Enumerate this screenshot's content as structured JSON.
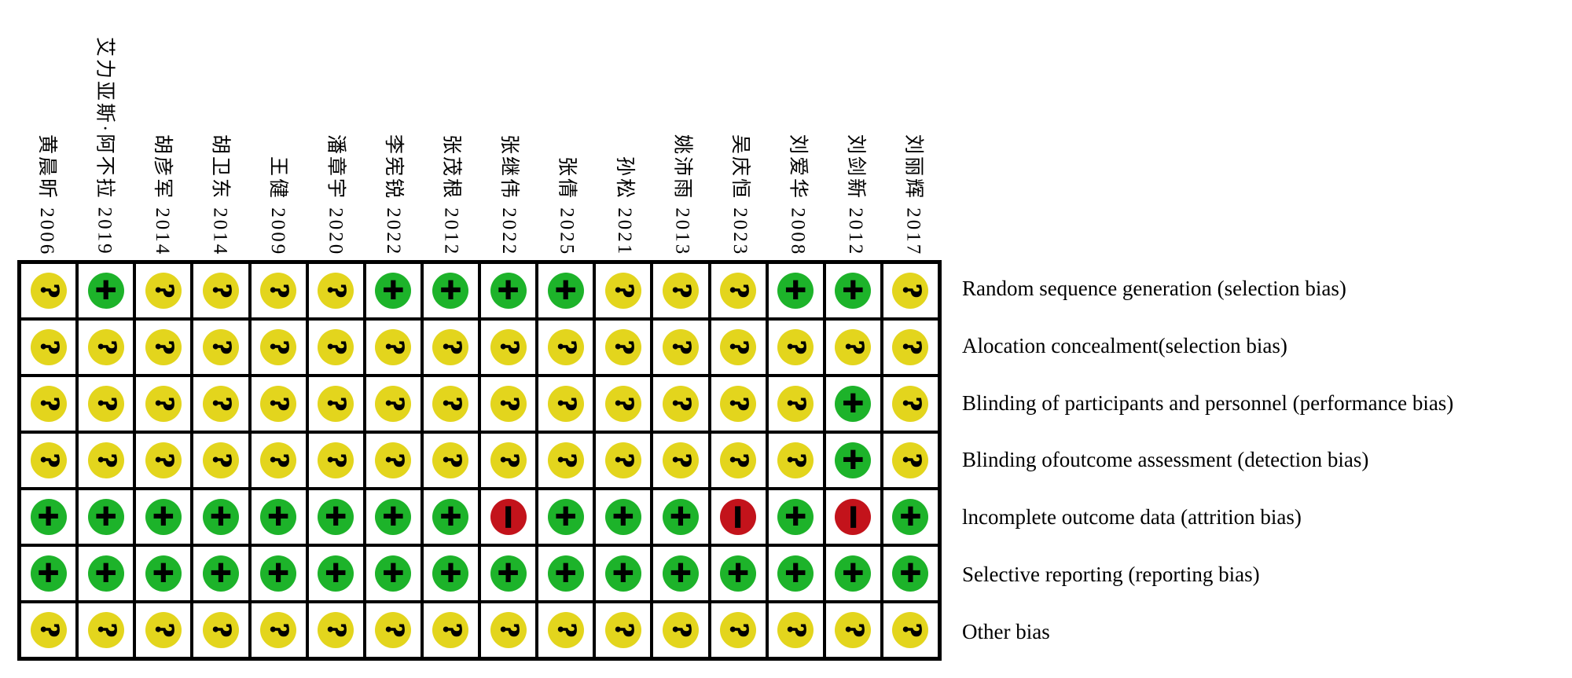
{
  "chart_data": {
    "type": "heatmap",
    "columns": [
      "黄晨昕 2006",
      "艾力亚斯·阿不拉 2019",
      "胡彦军 2014",
      "胡卫东 2014",
      "王健 2009",
      "潘章宇 2020",
      "李宪锐 2022",
      "张茂根 2012",
      "张继伟 2022",
      "张倩 2025",
      "孙松 2021",
      "姚沛雨 2013",
      "吴庆恒 2023",
      "刘爱华 2008",
      "刘剑新 2012",
      "刘丽辉 2017"
    ],
    "rows": [
      "Random sequence generation (selection bias)",
      "Alocation concealment(selection bias)",
      "Blinding of participants and personnel (performance bias)",
      "Blinding ofoutcome assessment (detection bias)",
      "lncomplete outcome data (attrition bias)",
      "Selective reporting (reporting bias)",
      "Other bias"
    ],
    "values": [
      [
        "?",
        "+",
        "?",
        "?",
        "?",
        "?",
        "+",
        "+",
        "+",
        "+",
        "?",
        "?",
        "?",
        "+",
        "+",
        "?"
      ],
      [
        "?",
        "?",
        "?",
        "?",
        "?",
        "?",
        "?",
        "?",
        "?",
        "?",
        "?",
        "?",
        "?",
        "?",
        "?",
        "?"
      ],
      [
        "?",
        "?",
        "?",
        "?",
        "?",
        "?",
        "?",
        "?",
        "?",
        "?",
        "?",
        "?",
        "?",
        "?",
        "+",
        "?"
      ],
      [
        "?",
        "?",
        "?",
        "?",
        "?",
        "?",
        "?",
        "?",
        "?",
        "?",
        "?",
        "?",
        "?",
        "?",
        "+",
        "?"
      ],
      [
        "+",
        "+",
        "+",
        "+",
        "+",
        "+",
        "+",
        "+",
        "-",
        "+",
        "+",
        "+",
        "-",
        "+",
        "-",
        "+"
      ],
      [
        "+",
        "+",
        "+",
        "+",
        "+",
        "+",
        "+",
        "+",
        "+",
        "+",
        "+",
        "+",
        "+",
        "+",
        "+",
        "+"
      ],
      [
        "?",
        "?",
        "?",
        "?",
        "?",
        "?",
        "?",
        "?",
        "?",
        "?",
        "?",
        "?",
        "?",
        "?",
        "?",
        "?"
      ]
    ],
    "encoding": {
      "+": "low risk (green circle, plus sign)",
      "?": "unclear risk (yellow circle, question mark)",
      "-": "high risk (red circle, minus sign)"
    },
    "layout": "grid of 16 study columns x 7 bias-domain rows; study names rotated 90° clockwise above columns; domain labels horizontal at right"
  },
  "risk_names": {
    "+": "low",
    "?": "unclear",
    "-": "high"
  },
  "display_symbols": {
    "+": "+",
    "?": "?",
    "-": "−"
  },
  "colors": {
    "+": "#1db32a",
    "?": "#e3d51d",
    "-": "#c3131b"
  },
  "symbol_color": "#000000"
}
